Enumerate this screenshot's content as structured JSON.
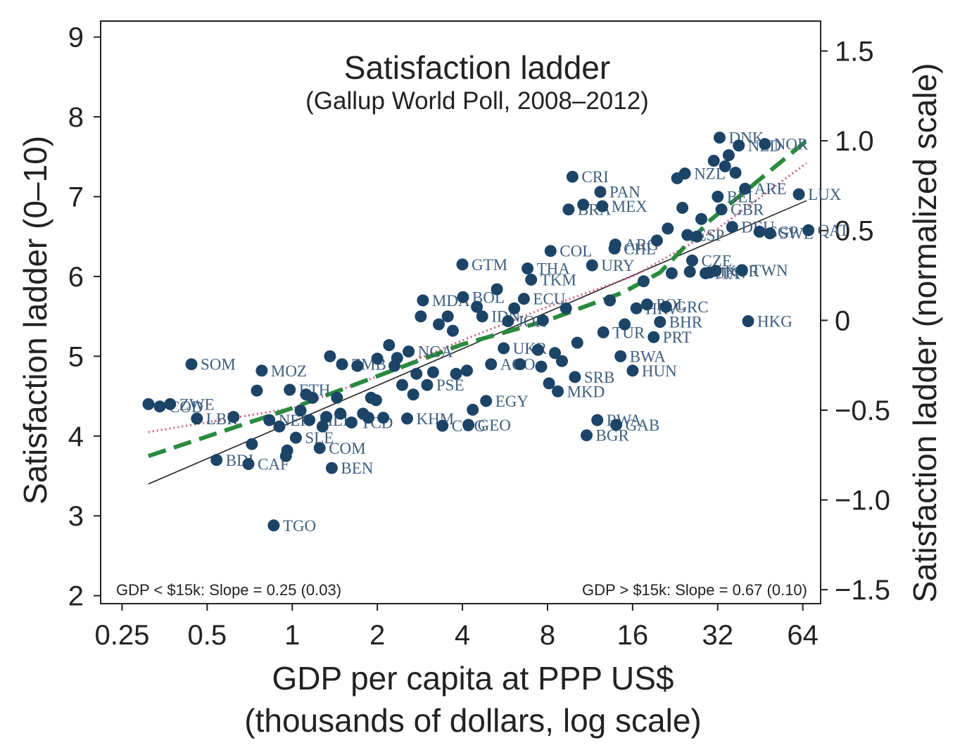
{
  "chart_data": {
    "type": "scatter",
    "title": "Satisfaction ladder",
    "subtitle": "(Gallup World Poll, 2008–2012)",
    "xlabel_line1": "GDP per capita at PPP US$",
    "xlabel_line2": "(thousands of dollars, log scale)",
    "ylabel_left": "Satisfaction ladder (0–10)",
    "ylabel_right": "Satisfaction ladder (normalized scale)",
    "x_scale": "log2",
    "xlim": [
      0.21,
      74
    ],
    "ylim": [
      1.9,
      9.2
    ],
    "x_ticks": [
      0.25,
      0.5,
      1,
      2,
      4,
      8,
      16,
      32,
      64
    ],
    "x_tick_labels": [
      "0.25",
      "0.5",
      "1",
      "2",
      "4",
      "8",
      "16",
      "32",
      "64"
    ],
    "y_ticks": [
      2,
      3,
      4,
      5,
      6,
      7,
      8,
      9
    ],
    "y_tick_labels": [
      "2",
      "3",
      "4",
      "5",
      "6",
      "7",
      "8",
      "9"
    ],
    "y2_ticks": [
      -1.5,
      -1.0,
      -0.5,
      0,
      0.5,
      1.0,
      1.5
    ],
    "y2_tick_labels": [
      "−1.5",
      "−1.0",
      "−0.5",
      "0",
      "0.5",
      "1.0",
      "1.5"
    ],
    "y2_to_y": {
      "offset": 5.45,
      "scale": 2.25
    },
    "colors": {
      "points": "#1c4467",
      "labels": "#3d5e7f",
      "linear_fit": "#222222",
      "lowess_fit": "#cf5f7d",
      "piecewise_fit": "#2a8a3e"
    },
    "annotations": {
      "left": "GDP < $15k: Slope = 0.25 (0.03)",
      "right": "GDP > $15k: Slope = 0.67 (0.10)"
    },
    "points": [
      {
        "x": 0.31,
        "y": 4.4
      },
      {
        "x": 0.34,
        "y": 4.37,
        "label": "COD"
      },
      {
        "x": 0.37,
        "y": 4.4,
        "label": "ZWE"
      },
      {
        "x": 0.46,
        "y": 4.22,
        "label": "LBR"
      },
      {
        "x": 0.54,
        "y": 3.7,
        "label": "BDI"
      },
      {
        "x": 0.44,
        "y": 4.9,
        "label": "SOM"
      },
      {
        "x": 0.62,
        "y": 4.24
      },
      {
        "x": 0.7,
        "y": 3.65,
        "label": "CAF"
      },
      {
        "x": 0.72,
        "y": 3.9
      },
      {
        "x": 0.75,
        "y": 4.57
      },
      {
        "x": 0.78,
        "y": 4.82,
        "label": "MOZ"
      },
      {
        "x": 0.86,
        "y": 2.88,
        "label": "TGO"
      },
      {
        "x": 0.83,
        "y": 4.2,
        "label": "NER"
      },
      {
        "x": 0.9,
        "y": 4.12
      },
      {
        "x": 0.95,
        "y": 3.75
      },
      {
        "x": 0.96,
        "y": 3.82
      },
      {
        "x": 0.98,
        "y": 4.58,
        "label": "ETH"
      },
      {
        "x": 1.03,
        "y": 3.98,
        "label": "SLE"
      },
      {
        "x": 1.07,
        "y": 4.32
      },
      {
        "x": 1.12,
        "y": 4.52
      },
      {
        "x": 1.15,
        "y": 4.2,
        "label": "MLI"
      },
      {
        "x": 1.18,
        "y": 4.48
      },
      {
        "x": 1.25,
        "y": 3.85,
        "label": "COM"
      },
      {
        "x": 1.28,
        "y": 4.12
      },
      {
        "x": 1.32,
        "y": 4.24
      },
      {
        "x": 1.36,
        "y": 5.0
      },
      {
        "x": 1.38,
        "y": 3.6,
        "label": "BEN"
      },
      {
        "x": 1.44,
        "y": 4.48
      },
      {
        "x": 1.48,
        "y": 4.28
      },
      {
        "x": 1.5,
        "y": 4.9,
        "label": "ZMB"
      },
      {
        "x": 1.62,
        "y": 4.17,
        "label": "TCD"
      },
      {
        "x": 1.7,
        "y": 4.88
      },
      {
        "x": 1.78,
        "y": 4.28
      },
      {
        "x": 1.86,
        "y": 4.23
      },
      {
        "x": 1.9,
        "y": 4.48
      },
      {
        "x": 1.98,
        "y": 4.45
      },
      {
        "x": 2.0,
        "y": 4.97
      },
      {
        "x": 2.1,
        "y": 4.23
      },
      {
        "x": 2.2,
        "y": 5.14
      },
      {
        "x": 2.3,
        "y": 4.88
      },
      {
        "x": 2.35,
        "y": 4.98
      },
      {
        "x": 2.45,
        "y": 4.64
      },
      {
        "x": 2.55,
        "y": 4.22,
        "label": "KHM"
      },
      {
        "x": 2.58,
        "y": 5.06,
        "label": "NGA"
      },
      {
        "x": 2.68,
        "y": 4.52
      },
      {
        "x": 2.75,
        "y": 4.78
      },
      {
        "x": 2.85,
        "y": 5.5
      },
      {
        "x": 2.9,
        "y": 5.7,
        "label": "MDA"
      },
      {
        "x": 3.0,
        "y": 4.64,
        "label": "PSE"
      },
      {
        "x": 3.15,
        "y": 4.8
      },
      {
        "x": 3.3,
        "y": 5.4
      },
      {
        "x": 3.4,
        "y": 4.13,
        "label": "COG"
      },
      {
        "x": 3.55,
        "y": 5.5
      },
      {
        "x": 3.7,
        "y": 5.32
      },
      {
        "x": 3.8,
        "y": 4.78
      },
      {
        "x": 4.0,
        "y": 6.15,
        "label": "GTM"
      },
      {
        "x": 4.02,
        "y": 5.74,
        "label": "BOL"
      },
      {
        "x": 4.15,
        "y": 4.82
      },
      {
        "x": 4.2,
        "y": 4.14,
        "label": "GEO"
      },
      {
        "x": 4.35,
        "y": 4.33
      },
      {
        "x": 4.5,
        "y": 5.62
      },
      {
        "x": 4.7,
        "y": 5.5,
        "label": "IDN"
      },
      {
        "x": 4.85,
        "y": 4.44,
        "label": "EGY"
      },
      {
        "x": 5.05,
        "y": 4.9,
        "label": "AGO"
      },
      {
        "x": 5.3,
        "y": 5.84
      },
      {
        "x": 5.6,
        "y": 5.1,
        "label": "UKR"
      },
      {
        "x": 5.8,
        "y": 5.44,
        "label": "JOR"
      },
      {
        "x": 6.1,
        "y": 5.6
      },
      {
        "x": 6.4,
        "y": 4.9
      },
      {
        "x": 6.6,
        "y": 5.72,
        "label": "ECU"
      },
      {
        "x": 6.8,
        "y": 6.1,
        "label": "THA"
      },
      {
        "x": 7.0,
        "y": 5.96,
        "label": "TKM"
      },
      {
        "x": 7.4,
        "y": 5.08
      },
      {
        "x": 7.6,
        "y": 4.87
      },
      {
        "x": 7.7,
        "y": 5.45
      },
      {
        "x": 8.1,
        "y": 4.66
      },
      {
        "x": 8.2,
        "y": 6.32,
        "label": "COL"
      },
      {
        "x": 8.5,
        "y": 5.04
      },
      {
        "x": 8.7,
        "y": 4.56,
        "label": "MKD"
      },
      {
        "x": 9.0,
        "y": 4.94
      },
      {
        "x": 9.3,
        "y": 5.6
      },
      {
        "x": 9.5,
        "y": 6.84,
        "label": "BRA"
      },
      {
        "x": 9.8,
        "y": 7.25,
        "label": "CRI"
      },
      {
        "x": 10.0,
        "y": 4.74,
        "label": "SRB"
      },
      {
        "x": 10.2,
        "y": 5.17
      },
      {
        "x": 10.7,
        "y": 6.9
      },
      {
        "x": 11.0,
        "y": 4.01,
        "label": "BGR"
      },
      {
        "x": 11.5,
        "y": 6.14,
        "label": "URY"
      },
      {
        "x": 12.0,
        "y": 4.2,
        "label": "RWA"
      },
      {
        "x": 12.3,
        "y": 7.06,
        "label": "PAN"
      },
      {
        "x": 12.5,
        "y": 6.88,
        "label": "MEX"
      },
      {
        "x": 12.6,
        "y": 5.3,
        "label": "TUR"
      },
      {
        "x": 13.3,
        "y": 5.7
      },
      {
        "x": 13.8,
        "y": 6.35,
        "label": "CHL"
      },
      {
        "x": 13.9,
        "y": 6.4,
        "label": "ARG"
      },
      {
        "x": 14.0,
        "y": 4.14,
        "label": "GAB"
      },
      {
        "x": 14.5,
        "y": 5.0,
        "label": "BWA"
      },
      {
        "x": 15.0,
        "y": 5.4
      },
      {
        "x": 16.0,
        "y": 4.82,
        "label": "HUN"
      },
      {
        "x": 16.5,
        "y": 5.6,
        "label": "HRV"
      },
      {
        "x": 17.5,
        "y": 5.94
      },
      {
        "x": 18.0,
        "y": 5.65,
        "label": "POL"
      },
      {
        "x": 19.0,
        "y": 5.24,
        "label": "PRT"
      },
      {
        "x": 19.5,
        "y": 6.45
      },
      {
        "x": 20.0,
        "y": 5.43,
        "label": "BHR"
      },
      {
        "x": 21.0,
        "y": 5.62,
        "label": "GRC"
      },
      {
        "x": 21.3,
        "y": 6.6
      },
      {
        "x": 22.0,
        "y": 6.04
      },
      {
        "x": 23.0,
        "y": 7.23
      },
      {
        "x": 24.0,
        "y": 6.86
      },
      {
        "x": 24.5,
        "y": 7.29,
        "label": "NZL"
      },
      {
        "x": 25.0,
        "y": 6.52,
        "label": "ESP"
      },
      {
        "x": 25.5,
        "y": 6.06
      },
      {
        "x": 26.0,
        "y": 6.2,
        "label": "CZE"
      },
      {
        "x": 27.0,
        "y": 6.5
      },
      {
        "x": 28.0,
        "y": 6.72
      },
      {
        "x": 29.0,
        "y": 6.04,
        "label": "ITA"
      },
      {
        "x": 30.0,
        "y": 6.05,
        "label": "JPN"
      },
      {
        "x": 31.0,
        "y": 7.45
      },
      {
        "x": 31.5,
        "y": 6.07,
        "label": "KOR"
      },
      {
        "x": 32.0,
        "y": 7.0,
        "label": "BEL"
      },
      {
        "x": 32.5,
        "y": 7.74,
        "label": "DNK"
      },
      {
        "x": 33.0,
        "y": 6.84,
        "label": "GBR"
      },
      {
        "x": 34.0,
        "y": 7.38
      },
      {
        "x": 35.0,
        "y": 7.52
      },
      {
        "x": 36.0,
        "y": 6.62,
        "label": "DEU"
      },
      {
        "x": 37.0,
        "y": 7.3
      },
      {
        "x": 38.0,
        "y": 7.64,
        "label": "NLD"
      },
      {
        "x": 39.0,
        "y": 6.08,
        "label": "TWN"
      },
      {
        "x": 40.0,
        "y": 7.1,
        "label": "ARE"
      },
      {
        "x": 41.0,
        "y": 5.44,
        "label": "HKG"
      },
      {
        "x": 45.0,
        "y": 6.56,
        "label": "SGP"
      },
      {
        "x": 47.0,
        "y": 7.66,
        "label": "NOR"
      },
      {
        "x": 49.0,
        "y": 6.54,
        "label": "SWE"
      },
      {
        "x": 62.0,
        "y": 7.03,
        "label": "LUX"
      },
      {
        "x": 67.0,
        "y": 6.58,
        "label": "QAT"
      }
    ],
    "linear_fit": [
      {
        "x": 0.31,
        "y": 3.4
      },
      {
        "x": 66,
        "y": 6.95
      }
    ],
    "lowess_fit": [
      {
        "x": 0.31,
        "y": 4.05
      },
      {
        "x": 1,
        "y": 4.35
      },
      {
        "x": 2,
        "y": 4.75
      },
      {
        "x": 4,
        "y": 5.2
      },
      {
        "x": 8,
        "y": 5.62
      },
      {
        "x": 16,
        "y": 6.0
      },
      {
        "x": 32,
        "y": 6.6
      },
      {
        "x": 66,
        "y": 7.42
      }
    ],
    "piecewise_fit": [
      {
        "x": 0.31,
        "y": 3.75
      },
      {
        "x": 1,
        "y": 4.35
      },
      {
        "x": 2,
        "y": 4.75
      },
      {
        "x": 4,
        "y": 5.15
      },
      {
        "x": 8,
        "y": 5.45
      },
      {
        "x": 14.8,
        "y": 5.8
      },
      {
        "x": 20,
        "y": 6.05
      },
      {
        "x": 30,
        "y": 6.7
      },
      {
        "x": 66,
        "y": 7.7
      }
    ]
  }
}
